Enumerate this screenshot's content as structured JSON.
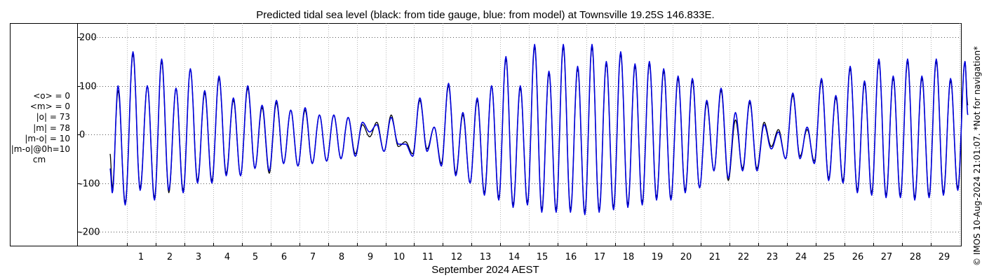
{
  "chart_data": {
    "type": "line",
    "title": "Predicted tidal sea level (black: from tide gauge, blue: from model) at Townsville 19.25S 146.833E.",
    "xlabel": "September 2024 AEST",
    "ylabel": "",
    "xlim": [
      0.3,
      30.3
    ],
    "ylim": [
      -240,
      220
    ],
    "xticks": [
      1,
      2,
      3,
      4,
      5,
      6,
      7,
      8,
      9,
      10,
      11,
      12,
      13,
      14,
      15,
      16,
      17,
      18,
      19,
      20,
      21,
      22,
      23,
      24,
      25,
      26,
      27,
      28,
      29
    ],
    "yticks": [
      -200,
      -100,
      0,
      100,
      200
    ],
    "grid": true,
    "series": [
      {
        "label": "black",
        "color": "#000000",
        "points": [
          [
            0.4,
            -40
          ],
          [
            0.48,
            -110
          ],
          [
            0.68,
            90
          ],
          [
            0.93,
            -140
          ],
          [
            1.2,
            165
          ],
          [
            1.45,
            -110
          ],
          [
            1.7,
            100
          ],
          [
            1.95,
            -130
          ],
          [
            2.2,
            150
          ],
          [
            2.45,
            -120
          ],
          [
            2.7,
            95
          ],
          [
            2.95,
            -115
          ],
          [
            3.2,
            135
          ],
          [
            3.45,
            -95
          ],
          [
            3.7,
            85
          ],
          [
            3.95,
            -95
          ],
          [
            4.2,
            115
          ],
          [
            4.45,
            -80
          ],
          [
            4.7,
            70
          ],
          [
            4.95,
            -85
          ],
          [
            5.2,
            95
          ],
          [
            5.45,
            -70
          ],
          [
            5.7,
            55
          ],
          [
            5.95,
            -80
          ],
          [
            6.2,
            65
          ],
          [
            6.45,
            -60
          ],
          [
            6.7,
            50
          ],
          [
            6.95,
            -65
          ],
          [
            7.2,
            50
          ],
          [
            7.45,
            -60
          ],
          [
            7.7,
            40
          ],
          [
            7.95,
            -55
          ],
          [
            8.2,
            40
          ],
          [
            8.45,
            -50
          ],
          [
            8.7,
            35
          ],
          [
            8.95,
            -40
          ],
          [
            9.2,
            20
          ],
          [
            9.45,
            -5
          ],
          [
            9.7,
            25
          ],
          [
            9.95,
            -35
          ],
          [
            10.2,
            40
          ],
          [
            10.45,
            -25
          ],
          [
            10.7,
            -15
          ],
          [
            10.95,
            -40
          ],
          [
            11.2,
            70
          ],
          [
            11.45,
            -30
          ],
          [
            11.7,
            15
          ],
          [
            11.95,
            -60
          ],
          [
            12.2,
            100
          ],
          [
            12.45,
            -80
          ],
          [
            12.7,
            40
          ],
          [
            12.95,
            -100
          ],
          [
            13.2,
            70
          ],
          [
            13.45,
            -120
          ],
          [
            13.7,
            100
          ],
          [
            13.95,
            -130
          ],
          [
            14.2,
            155
          ],
          [
            14.45,
            -145
          ],
          [
            14.7,
            95
          ],
          [
            14.95,
            -140
          ],
          [
            15.2,
            180
          ],
          [
            15.45,
            -155
          ],
          [
            15.7,
            125
          ],
          [
            15.95,
            -155
          ],
          [
            16.2,
            180
          ],
          [
            16.45,
            -155
          ],
          [
            16.7,
            135
          ],
          [
            16.95,
            -160
          ],
          [
            17.2,
            180
          ],
          [
            17.45,
            -155
          ],
          [
            17.7,
            145
          ],
          [
            17.95,
            -150
          ],
          [
            18.2,
            165
          ],
          [
            18.45,
            -145
          ],
          [
            18.7,
            140
          ],
          [
            18.95,
            -140
          ],
          [
            19.2,
            145
          ],
          [
            19.45,
            -130
          ],
          [
            19.7,
            130
          ],
          [
            19.95,
            -130
          ],
          [
            20.2,
            115
          ],
          [
            20.45,
            -115
          ],
          [
            20.7,
            110
          ],
          [
            20.95,
            -110
          ],
          [
            21.2,
            65
          ],
          [
            21.45,
            -75
          ],
          [
            21.7,
            90
          ],
          [
            21.95,
            -95
          ],
          [
            22.2,
            30
          ],
          [
            22.45,
            -70
          ],
          [
            22.7,
            65
          ],
          [
            22.95,
            -70
          ],
          [
            23.2,
            25
          ],
          [
            23.45,
            -25
          ],
          [
            23.7,
            10
          ],
          [
            23.95,
            -50
          ],
          [
            24.2,
            80
          ],
          [
            24.45,
            -45
          ],
          [
            24.7,
            10
          ],
          [
            24.95,
            -55
          ],
          [
            25.2,
            110
          ],
          [
            25.45,
            -90
          ],
          [
            25.7,
            75
          ],
          [
            25.95,
            -95
          ],
          [
            26.2,
            135
          ],
          [
            26.45,
            -115
          ],
          [
            26.7,
            105
          ],
          [
            26.95,
            -120
          ],
          [
            27.2,
            150
          ],
          [
            27.45,
            -125
          ],
          [
            27.7,
            115
          ],
          [
            27.95,
            -125
          ],
          [
            28.2,
            150
          ],
          [
            28.45,
            -130
          ],
          [
            28.7,
            115
          ],
          [
            28.95,
            -125
          ],
          [
            29.2,
            150
          ],
          [
            29.45,
            -120
          ],
          [
            29.7,
            110
          ],
          [
            29.95,
            -110
          ],
          [
            30.2,
            150
          ],
          [
            30.3,
            60
          ]
        ]
      },
      {
        "label": "blue",
        "color": "#0000dd",
        "points": [
          [
            0.4,
            -70
          ],
          [
            0.48,
            -120
          ],
          [
            0.68,
            100
          ],
          [
            0.93,
            -145
          ],
          [
            1.2,
            170
          ],
          [
            1.45,
            -115
          ],
          [
            1.7,
            100
          ],
          [
            1.95,
            -135
          ],
          [
            2.2,
            155
          ],
          [
            2.45,
            -115
          ],
          [
            2.7,
            95
          ],
          [
            2.95,
            -120
          ],
          [
            3.2,
            135
          ],
          [
            3.45,
            -100
          ],
          [
            3.7,
            90
          ],
          [
            3.95,
            -100
          ],
          [
            4.2,
            120
          ],
          [
            4.45,
            -85
          ],
          [
            4.7,
            75
          ],
          [
            4.95,
            -85
          ],
          [
            5.2,
            100
          ],
          [
            5.45,
            -70
          ],
          [
            5.7,
            60
          ],
          [
            5.95,
            -75
          ],
          [
            6.2,
            70
          ],
          [
            6.45,
            -60
          ],
          [
            6.7,
            50
          ],
          [
            6.95,
            -65
          ],
          [
            7.2,
            55
          ],
          [
            7.45,
            -60
          ],
          [
            7.7,
            40
          ],
          [
            7.95,
            -55
          ],
          [
            8.2,
            40
          ],
          [
            8.45,
            -50
          ],
          [
            8.7,
            35
          ],
          [
            8.95,
            -45
          ],
          [
            9.2,
            25
          ],
          [
            9.45,
            5
          ],
          [
            9.7,
            20
          ],
          [
            9.95,
            -35
          ],
          [
            10.2,
            35
          ],
          [
            10.45,
            -20
          ],
          [
            10.7,
            -20
          ],
          [
            10.95,
            -45
          ],
          [
            11.2,
            75
          ],
          [
            11.45,
            -35
          ],
          [
            11.7,
            15
          ],
          [
            11.95,
            -65
          ],
          [
            12.2,
            105
          ],
          [
            12.45,
            -85
          ],
          [
            12.7,
            45
          ],
          [
            12.95,
            -100
          ],
          [
            13.2,
            75
          ],
          [
            13.45,
            -125
          ],
          [
            13.7,
            100
          ],
          [
            13.95,
            -135
          ],
          [
            14.2,
            160
          ],
          [
            14.45,
            -150
          ],
          [
            14.7,
            100
          ],
          [
            14.95,
            -145
          ],
          [
            15.2,
            185
          ],
          [
            15.45,
            -160
          ],
          [
            15.7,
            130
          ],
          [
            15.95,
            -160
          ],
          [
            16.2,
            185
          ],
          [
            16.45,
            -160
          ],
          [
            16.7,
            140
          ],
          [
            16.95,
            -165
          ],
          [
            17.2,
            185
          ],
          [
            17.45,
            -160
          ],
          [
            17.7,
            150
          ],
          [
            17.95,
            -155
          ],
          [
            18.2,
            170
          ],
          [
            18.45,
            -150
          ],
          [
            18.7,
            145
          ],
          [
            18.95,
            -145
          ],
          [
            19.2,
            150
          ],
          [
            19.45,
            -135
          ],
          [
            19.7,
            135
          ],
          [
            19.95,
            -135
          ],
          [
            20.2,
            120
          ],
          [
            20.45,
            -120
          ],
          [
            20.7,
            115
          ],
          [
            20.95,
            -110
          ],
          [
            21.2,
            70
          ],
          [
            21.45,
            -75
          ],
          [
            21.7,
            95
          ],
          [
            21.95,
            -90
          ],
          [
            22.2,
            45
          ],
          [
            22.45,
            -75
          ],
          [
            22.7,
            70
          ],
          [
            22.95,
            -75
          ],
          [
            23.2,
            20
          ],
          [
            23.45,
            -30
          ],
          [
            23.7,
            5
          ],
          [
            23.95,
            -50
          ],
          [
            24.2,
            85
          ],
          [
            24.45,
            -50
          ],
          [
            24.7,
            15
          ],
          [
            24.95,
            -60
          ],
          [
            25.2,
            115
          ],
          [
            25.45,
            -95
          ],
          [
            25.7,
            80
          ],
          [
            25.95,
            -100
          ],
          [
            26.2,
            140
          ],
          [
            26.45,
            -120
          ],
          [
            26.7,
            110
          ],
          [
            26.95,
            -125
          ],
          [
            27.2,
            155
          ],
          [
            27.45,
            -130
          ],
          [
            27.7,
            120
          ],
          [
            27.95,
            -130
          ],
          [
            28.2,
            155
          ],
          [
            28.45,
            -135
          ],
          [
            28.7,
            120
          ],
          [
            28.95,
            -130
          ],
          [
            29.2,
            155
          ],
          [
            29.45,
            -125
          ],
          [
            29.7,
            115
          ],
          [
            29.95,
            -115
          ],
          [
            30.2,
            150
          ],
          [
            30.3,
            40
          ]
        ]
      }
    ]
  },
  "stats": {
    "lines": [
      "<o> = 0",
      "<m> = 0",
      "|o| = 73",
      "|m| = 78",
      "|m-o| = 10",
      "|m-o|@0h=10"
    ],
    "unit": "cm"
  },
  "side_note": "© IMOS 10-Aug-2024 21:01:07. *Not for navigation*"
}
